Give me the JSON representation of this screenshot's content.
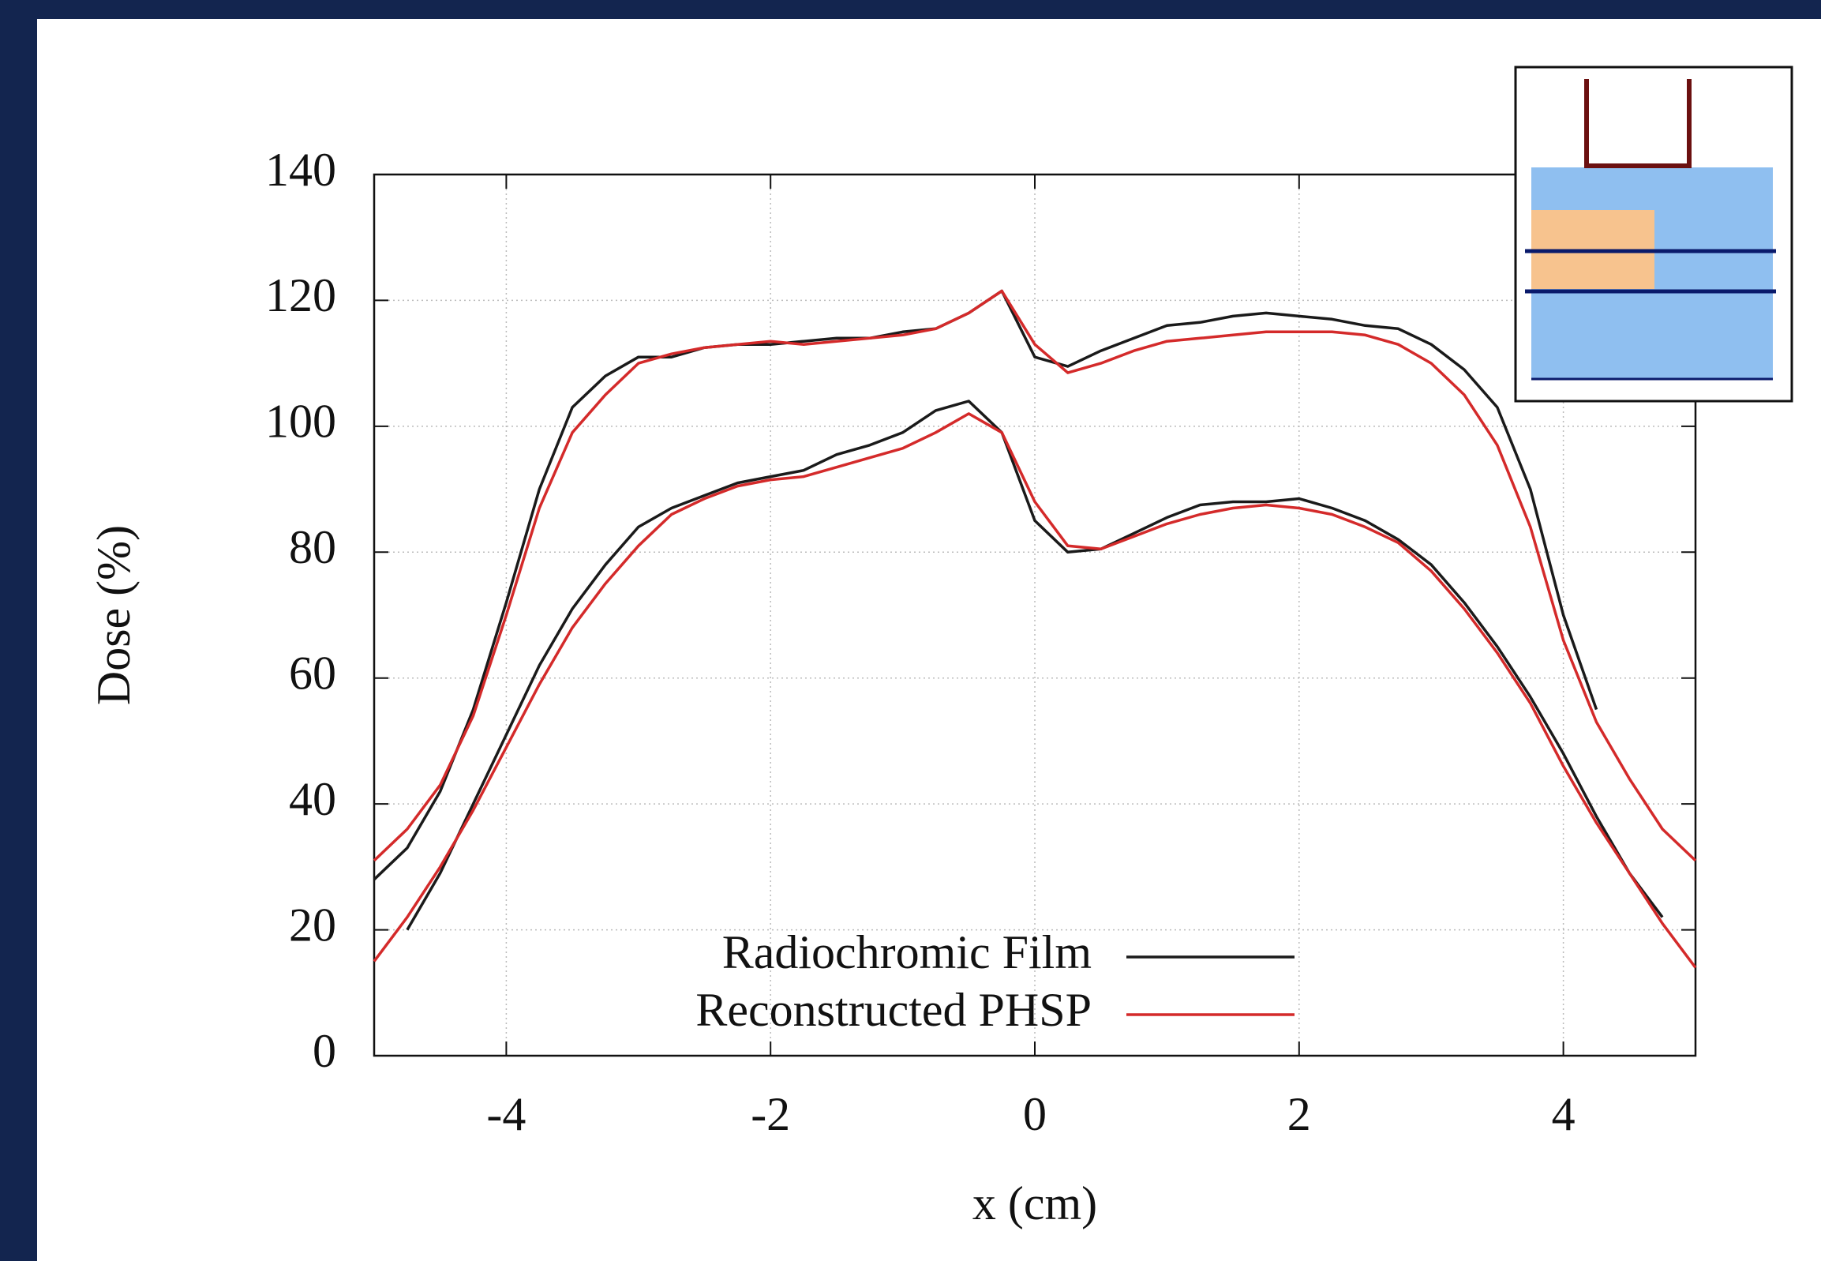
{
  "chart_data": {
    "type": "line",
    "xlabel": "x (cm)",
    "ylabel": "Dose (%)",
    "xlim": [
      -5,
      5
    ],
    "xticks": [
      -4,
      -2,
      0,
      2,
      4
    ],
    "ylim": [
      0,
      140
    ],
    "yticks": [
      0,
      20,
      40,
      60,
      80,
      100,
      120,
      140
    ],
    "grid": true,
    "legend": "lower-center",
    "x": [
      -5,
      -4.75,
      -4.5,
      -4.25,
      -4,
      -3.75,
      -3.5,
      -3.25,
      -3,
      -2.75,
      -2.5,
      -2.25,
      -2,
      -1.75,
      -1.5,
      -1.25,
      -1,
      -0.75,
      -0.5,
      -0.25,
      0,
      0.25,
      0.5,
      0.75,
      1,
      1.25,
      1.5,
      1.75,
      2,
      2.25,
      2.5,
      2.75,
      3,
      3.25,
      3.5,
      3.75,
      4,
      4.25,
      4.5,
      4.75,
      5
    ],
    "series": [
      {
        "name": "Radiochromic Film",
        "color": "#1a1a1a",
        "curves": [
          [
            28,
            33,
            42,
            55,
            72,
            90,
            103,
            108,
            111,
            111,
            112.5,
            113,
            113,
            113.5,
            114,
            114,
            115,
            115.5,
            118,
            121.5,
            111,
            109.5,
            112,
            114,
            116,
            116.5,
            117.5,
            118,
            117.5,
            117,
            116,
            115.5,
            113,
            109,
            103,
            90,
            70,
            55,
            null,
            null,
            null
          ],
          [
            null,
            20,
            29,
            40,
            51,
            62,
            71,
            78,
            84,
            87,
            89,
            91,
            92,
            93,
            95.5,
            97,
            99,
            102.5,
            104,
            99,
            85,
            80,
            80.5,
            83,
            85.5,
            87.5,
            88,
            88,
            88.5,
            87,
            85,
            82,
            78,
            72,
            65,
            57,
            48,
            38,
            29,
            22,
            null
          ]
        ]
      },
      {
        "name": "Reconstructed PHSP",
        "color": "#d42a2a",
        "curves": [
          [
            31,
            36,
            43,
            54,
            70,
            87,
            99,
            105,
            110,
            111.5,
            112.5,
            113,
            113.5,
            113,
            113.5,
            114,
            114.5,
            115.5,
            118,
            121.5,
            113,
            108.5,
            110,
            112,
            113.5,
            114,
            114.5,
            115,
            115,
            115,
            114.5,
            113,
            110,
            105,
            97,
            84,
            66,
            53,
            44,
            36,
            31
          ],
          [
            15,
            22,
            30,
            39,
            49,
            59,
            68,
            75,
            81,
            86,
            88.5,
            90.5,
            91.5,
            92,
            93.5,
            95,
            96.5,
            99,
            102,
            99,
            88,
            81,
            80.5,
            82.5,
            84.5,
            86,
            87,
            87.5,
            87,
            86,
            84,
            81.5,
            77,
            71,
            64,
            56,
            46,
            37,
            29,
            21,
            14
          ]
        ]
      }
    ]
  }
}
